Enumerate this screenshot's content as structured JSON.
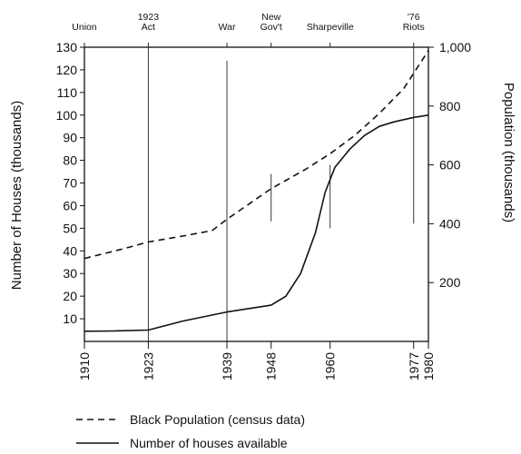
{
  "chart_data": {
    "type": "line",
    "x_ticks": [
      1910,
      1923,
      1939,
      1948,
      1960,
      1977,
      1980
    ],
    "xlim": [
      1910,
      1980
    ],
    "ylabel_left": "Number of Houses (thousands)",
    "ylabel_right": "Population (thousands)",
    "ylim_left": [
      0,
      130
    ],
    "left_ticks": [
      10,
      20,
      30,
      40,
      50,
      60,
      70,
      80,
      90,
      100,
      110,
      120,
      130
    ],
    "ylim_right": [
      0,
      1000
    ],
    "right_ticks": [
      {
        "value": 200,
        "label": "200"
      },
      {
        "value": 400,
        "label": "400"
      },
      {
        "value": 600,
        "label": "600"
      },
      {
        "value": 800,
        "label": "800"
      },
      {
        "value": 1000,
        "label": "1,000"
      }
    ],
    "events": [
      {
        "year": 1910,
        "label": [
          "Union"
        ],
        "line_top": null,
        "line_bottom": null
      },
      {
        "year": 1923,
        "label": [
          "1923",
          "Act"
        ],
        "line_top": 130,
        "line_bottom": 0
      },
      {
        "year": 1939,
        "label": [
          "War"
        ],
        "line_top": 124,
        "line_bottom": 0
      },
      {
        "year": 1948,
        "label": [
          "New",
          "Gov't"
        ],
        "line_top": 74,
        "line_bottom": 53
      },
      {
        "year": 1960,
        "label": [
          "Sharpeville"
        ],
        "line_top": 78,
        "line_bottom": 50
      },
      {
        "year": 1977,
        "label": [
          "'76",
          "Riots"
        ],
        "line_top": 130,
        "line_bottom": 52
      }
    ],
    "series": [
      {
        "name": "Black Population (census data)",
        "axis": "right",
        "style": "dashed",
        "points": [
          [
            1910,
            282
          ],
          [
            1918,
            315
          ],
          [
            1923,
            338
          ],
          [
            1930,
            358
          ],
          [
            1936,
            377
          ],
          [
            1939,
            415
          ],
          [
            1948,
            519
          ],
          [
            1955,
            585
          ],
          [
            1960,
            638
          ],
          [
            1965,
            700
          ],
          [
            1970,
            775
          ],
          [
            1975,
            860
          ],
          [
            1980,
            989
          ]
        ]
      },
      {
        "name": "Number of houses available",
        "axis": "left",
        "style": "solid",
        "points": [
          [
            1910,
            4.5
          ],
          [
            1916,
            4.6
          ],
          [
            1923,
            5
          ],
          [
            1930,
            9
          ],
          [
            1939,
            13
          ],
          [
            1945,
            15
          ],
          [
            1948,
            16
          ],
          [
            1951,
            20
          ],
          [
            1954,
            30
          ],
          [
            1957,
            48
          ],
          [
            1959,
            66
          ],
          [
            1961,
            77
          ],
          [
            1964,
            85
          ],
          [
            1967,
            91
          ],
          [
            1970,
            95
          ],
          [
            1973,
            97
          ],
          [
            1977,
            99
          ],
          [
            1980,
            100
          ]
        ]
      }
    ],
    "legend": {
      "position": "bottom",
      "items": [
        {
          "label": "Black Population (census data)",
          "style": "dashed"
        },
        {
          "label": "Number of houses available",
          "style": "solid"
        }
      ]
    }
  }
}
